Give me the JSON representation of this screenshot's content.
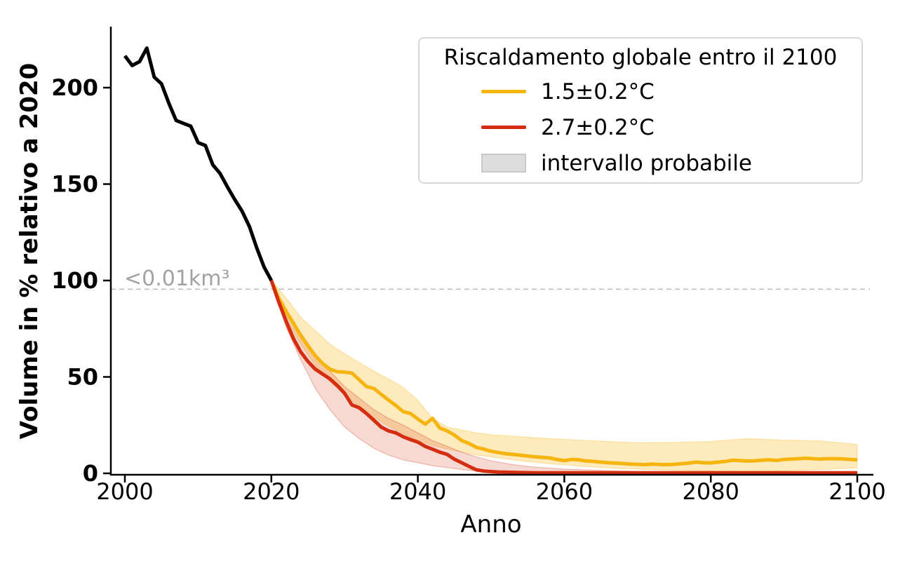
{
  "chart_data": {
    "type": "line",
    "xlabel": "Anno",
    "ylabel": "Volume in % relativo a 2020",
    "x_ticks": [
      2000,
      2020,
      2040,
      2060,
      2080,
      2100
    ],
    "y_ticks": [
      0,
      50,
      100,
      150,
      200
    ],
    "xlim": [
      1998.5,
      2101.5
    ],
    "ylim": [
      0,
      232
    ],
    "grid": false,
    "threshold": {
      "value": 95.5,
      "label": "<0.01km³",
      "line_color": "#bbbbbb",
      "label_color": "#a2a2a2"
    },
    "series": [
      {
        "id": "observed",
        "color": "#000000",
        "x_start": 2000,
        "values": [
          216.5,
          211.5,
          213.5,
          220.5,
          205.5,
          202,
          192,
          183,
          181.5,
          180,
          171.5,
          170,
          160,
          155.5,
          148.5,
          142,
          136,
          128,
          117,
          107,
          100
        ]
      },
      {
        "id": "warming-1p5",
        "label": "1.5±0.2°C",
        "color": "#f6b40e",
        "x_start": 2020,
        "values": [
          100,
          91,
          84,
          78,
          71.5,
          66,
          61,
          57,
          54,
          52.7,
          52.5,
          52,
          48.5,
          45,
          44,
          41,
          38,
          35.2,
          32,
          31,
          28.2,
          25.5,
          28.5,
          23.5,
          22,
          19.8,
          17,
          15.5,
          13.5,
          12.5,
          11.5,
          10.8,
          10.2,
          9.8,
          9.4,
          9,
          8.6,
          8.3,
          8,
          7.2,
          6.6,
          7.2,
          7,
          6.4,
          6.2,
          5.8,
          5.5,
          5.3,
          5.1,
          4.8,
          4.7,
          4.5,
          4.8,
          4.6,
          4.5,
          4.7,
          5,
          5.3,
          5.8,
          5.5,
          5.4,
          5.8,
          6.2,
          6.8,
          6.6,
          6.4,
          6.5,
          6.8,
          7,
          6.7,
          7.2,
          7.4,
          7.6,
          7.8,
          7.6,
          7.4,
          7.6,
          7.6,
          7.5,
          7.2,
          7
        ],
        "band": {
          "fill": "#f6b40e",
          "opacity": 0.27,
          "years": [
            2020,
            2022,
            2024,
            2026,
            2028,
            2030,
            2032,
            2034,
            2036,
            2038,
            2040,
            2042,
            2044,
            2046,
            2048,
            2050,
            2054,
            2058,
            2062,
            2066,
            2070,
            2075,
            2080,
            2085,
            2090,
            2095,
            2100
          ],
          "upper": [
            100,
            91,
            81,
            74,
            67,
            62,
            57.5,
            53,
            49,
            44.5,
            38,
            28.5,
            24,
            22.5,
            21,
            20,
            19,
            18,
            17.2,
            16.5,
            15.8,
            16,
            16.5,
            18,
            17.2,
            16.8,
            15
          ],
          "lower": [
            100,
            80,
            67,
            56,
            47.5,
            41,
            34.5,
            29,
            24.5,
            20.5,
            17,
            14.5,
            12.5,
            11,
            9.5,
            8.5,
            6.5,
            5,
            3.8,
            2.8,
            2.2,
            1.6,
            1.3,
            1.1,
            1.3,
            2,
            2.8
          ]
        }
      },
      {
        "id": "warming-2p7",
        "label": "2.7±0.2°C",
        "color": "#d42d0f",
        "x_start": 2020,
        "values": [
          100,
          89,
          79,
          70,
          63,
          58,
          54,
          51.5,
          49,
          45.5,
          41.5,
          35.5,
          34,
          31,
          27.5,
          24,
          22,
          21,
          19,
          17.5,
          16.2,
          14,
          12.5,
          11,
          9.8,
          7.3,
          5.5,
          3.6,
          1.8,
          1.2,
          0.9,
          0.7,
          0.6,
          0.5,
          0.4,
          0.35,
          0.3,
          0.3,
          0.3,
          0.3,
          0.3,
          0.3,
          0.3,
          0.3,
          0.3,
          0.3,
          0.3,
          0.3,
          0.3,
          0.3,
          0.3,
          0.3,
          0.3,
          0.3,
          0.3,
          0.3,
          0.3,
          0.3,
          0.3,
          0.3,
          0.3,
          0.3,
          0.3,
          0.3,
          0.3,
          0.3,
          0.3,
          0.3,
          0.3,
          0.3,
          0.3,
          0.3,
          0.3,
          0.3,
          0.3,
          0.3,
          0.3,
          0.3,
          0.3,
          0.3,
          0.3
        ],
        "band": {
          "fill": "#d42d0f",
          "opacity": 0.18,
          "years": [
            2020,
            2022,
            2024,
            2026,
            2028,
            2030,
            2032,
            2034,
            2036,
            2038,
            2040,
            2042,
            2044,
            2046,
            2048,
            2050,
            2053,
            2056,
            2060,
            2065,
            2070,
            2075,
            2080,
            2090,
            2100
          ],
          "upper": [
            100,
            85,
            73,
            62,
            53,
            45,
            39,
            33,
            28.5,
            25,
            21,
            17,
            14,
            11,
            8.5,
            6.5,
            4.5,
            3.2,
            2.2,
            1.5,
            1,
            0.7,
            0.5,
            0.4,
            0.4
          ],
          "lower": [
            100,
            76,
            59,
            44,
            33,
            24,
            18,
            13,
            9.5,
            7,
            5.5,
            4,
            3,
            2,
            1.2,
            0.8,
            0.5,
            0.3,
            0.15,
            0.05,
            0,
            0,
            0,
            0,
            0
          ]
        }
      }
    ],
    "legend": {
      "title": "Riscaldamento globale entro il 2100",
      "items": [
        {
          "label": "1.5±0.2°C",
          "type": "line",
          "color": "#f6b40e"
        },
        {
          "label": "2.7±0.2°C",
          "type": "line",
          "color": "#d42d0f"
        },
        {
          "label": "intervallo probabile",
          "type": "patch",
          "color": "#dcdcdc"
        }
      ]
    }
  }
}
